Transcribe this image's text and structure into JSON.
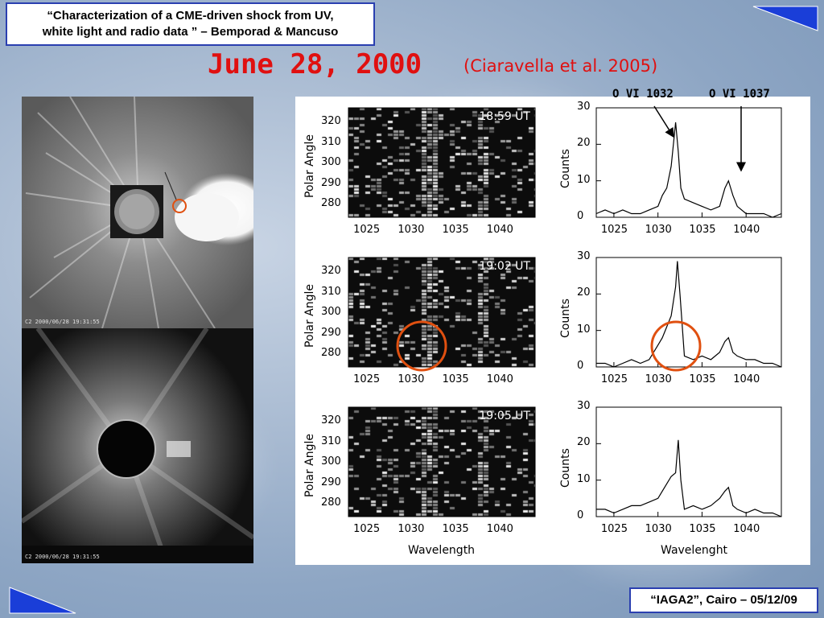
{
  "header": {
    "title_line1": "“Characterization of a CME-driven shock  from UV,",
    "title_line2": "white light and radio data ” – Bemporad & Mancuso",
    "date": "June 28, 2000",
    "reference": "(Ciaravella et al. 2005)"
  },
  "footer": {
    "text": "“IAGA2”, Cairo – 05/12/09"
  },
  "images": {
    "c2_caption": "C2 2000/06/28 19:31:55",
    "c3_caption": "C2 2000/06/28 19:31:55"
  },
  "figure": {
    "line_labels": {
      "o6_1032": "O VI 1032",
      "o6_1037": "O VI 1037"
    },
    "left_ylabel": "Polar Angle",
    "right_ylabel": "Counts",
    "left_xlabel": "Wavelength",
    "right_xlabel": "Wavelenght",
    "x_ticks": [
      "1025",
      "1030",
      "1035",
      "1040"
    ],
    "polar_ticks": [
      "320",
      "310",
      "300",
      "290",
      "280"
    ],
    "count_ticks": [
      "30",
      "20",
      "10",
      "0"
    ],
    "times": [
      "18:59 UT",
      "19:02 UT",
      "19:05 UT"
    ],
    "colors": {
      "highlight_circle": "#e05010"
    }
  },
  "chart_data": [
    {
      "type": "line",
      "title": "18:59 UT",
      "xlabel": "",
      "ylabel": "Counts",
      "xlim": [
        1023,
        1044
      ],
      "ylim": [
        0,
        30
      ],
      "x": [
        1023,
        1024,
        1025,
        1026,
        1027,
        1028,
        1029,
        1030,
        1030.5,
        1031,
        1031.5,
        1032,
        1032.3,
        1032.6,
        1033,
        1034,
        1035,
        1036,
        1037,
        1037.6,
        1038,
        1038.5,
        1039,
        1040,
        1041,
        1042,
        1043,
        1044
      ],
      "values": [
        1,
        2,
        1,
        2,
        1,
        1,
        2,
        3,
        6,
        8,
        14,
        26,
        18,
        8,
        5,
        4,
        3,
        2,
        3,
        8,
        10,
        6,
        3,
        1,
        1,
        1,
        0,
        1
      ]
    },
    {
      "type": "line",
      "title": "19:02 UT",
      "xlabel": "",
      "ylabel": "Counts",
      "xlim": [
        1023,
        1044
      ],
      "ylim": [
        0,
        30
      ],
      "x": [
        1023,
        1024,
        1025,
        1026,
        1027,
        1028,
        1029,
        1030,
        1030.5,
        1031,
        1031.5,
        1032,
        1032.2,
        1032.5,
        1033,
        1034,
        1035,
        1036,
        1037,
        1037.6,
        1038,
        1038.5,
        1039,
        1040,
        1041,
        1042,
        1043,
        1044
      ],
      "values": [
        1,
        1,
        0,
        1,
        2,
        1,
        2,
        6,
        8,
        11,
        14,
        22,
        29,
        20,
        3,
        2,
        3,
        2,
        4,
        7,
        8,
        4,
        3,
        2,
        2,
        1,
        1,
        0
      ]
    },
    {
      "type": "line",
      "title": "19:05 UT",
      "xlabel": "Wavelenght",
      "ylabel": "Counts",
      "xlim": [
        1023,
        1044
      ],
      "ylim": [
        0,
        30
      ],
      "x": [
        1023,
        1024,
        1025,
        1026,
        1027,
        1028,
        1029,
        1030,
        1030.5,
        1031,
        1031.5,
        1032,
        1032.3,
        1032.6,
        1033,
        1034,
        1035,
        1036,
        1037,
        1037.6,
        1038,
        1038.5,
        1039,
        1040,
        1041,
        1042,
        1043,
        1044
      ],
      "values": [
        2,
        2,
        1,
        2,
        3,
        3,
        4,
        5,
        7,
        9,
        11,
        12,
        21,
        10,
        2,
        3,
        2,
        3,
        5,
        7,
        8,
        3,
        2,
        1,
        2,
        1,
        1,
        0
      ]
    }
  ]
}
